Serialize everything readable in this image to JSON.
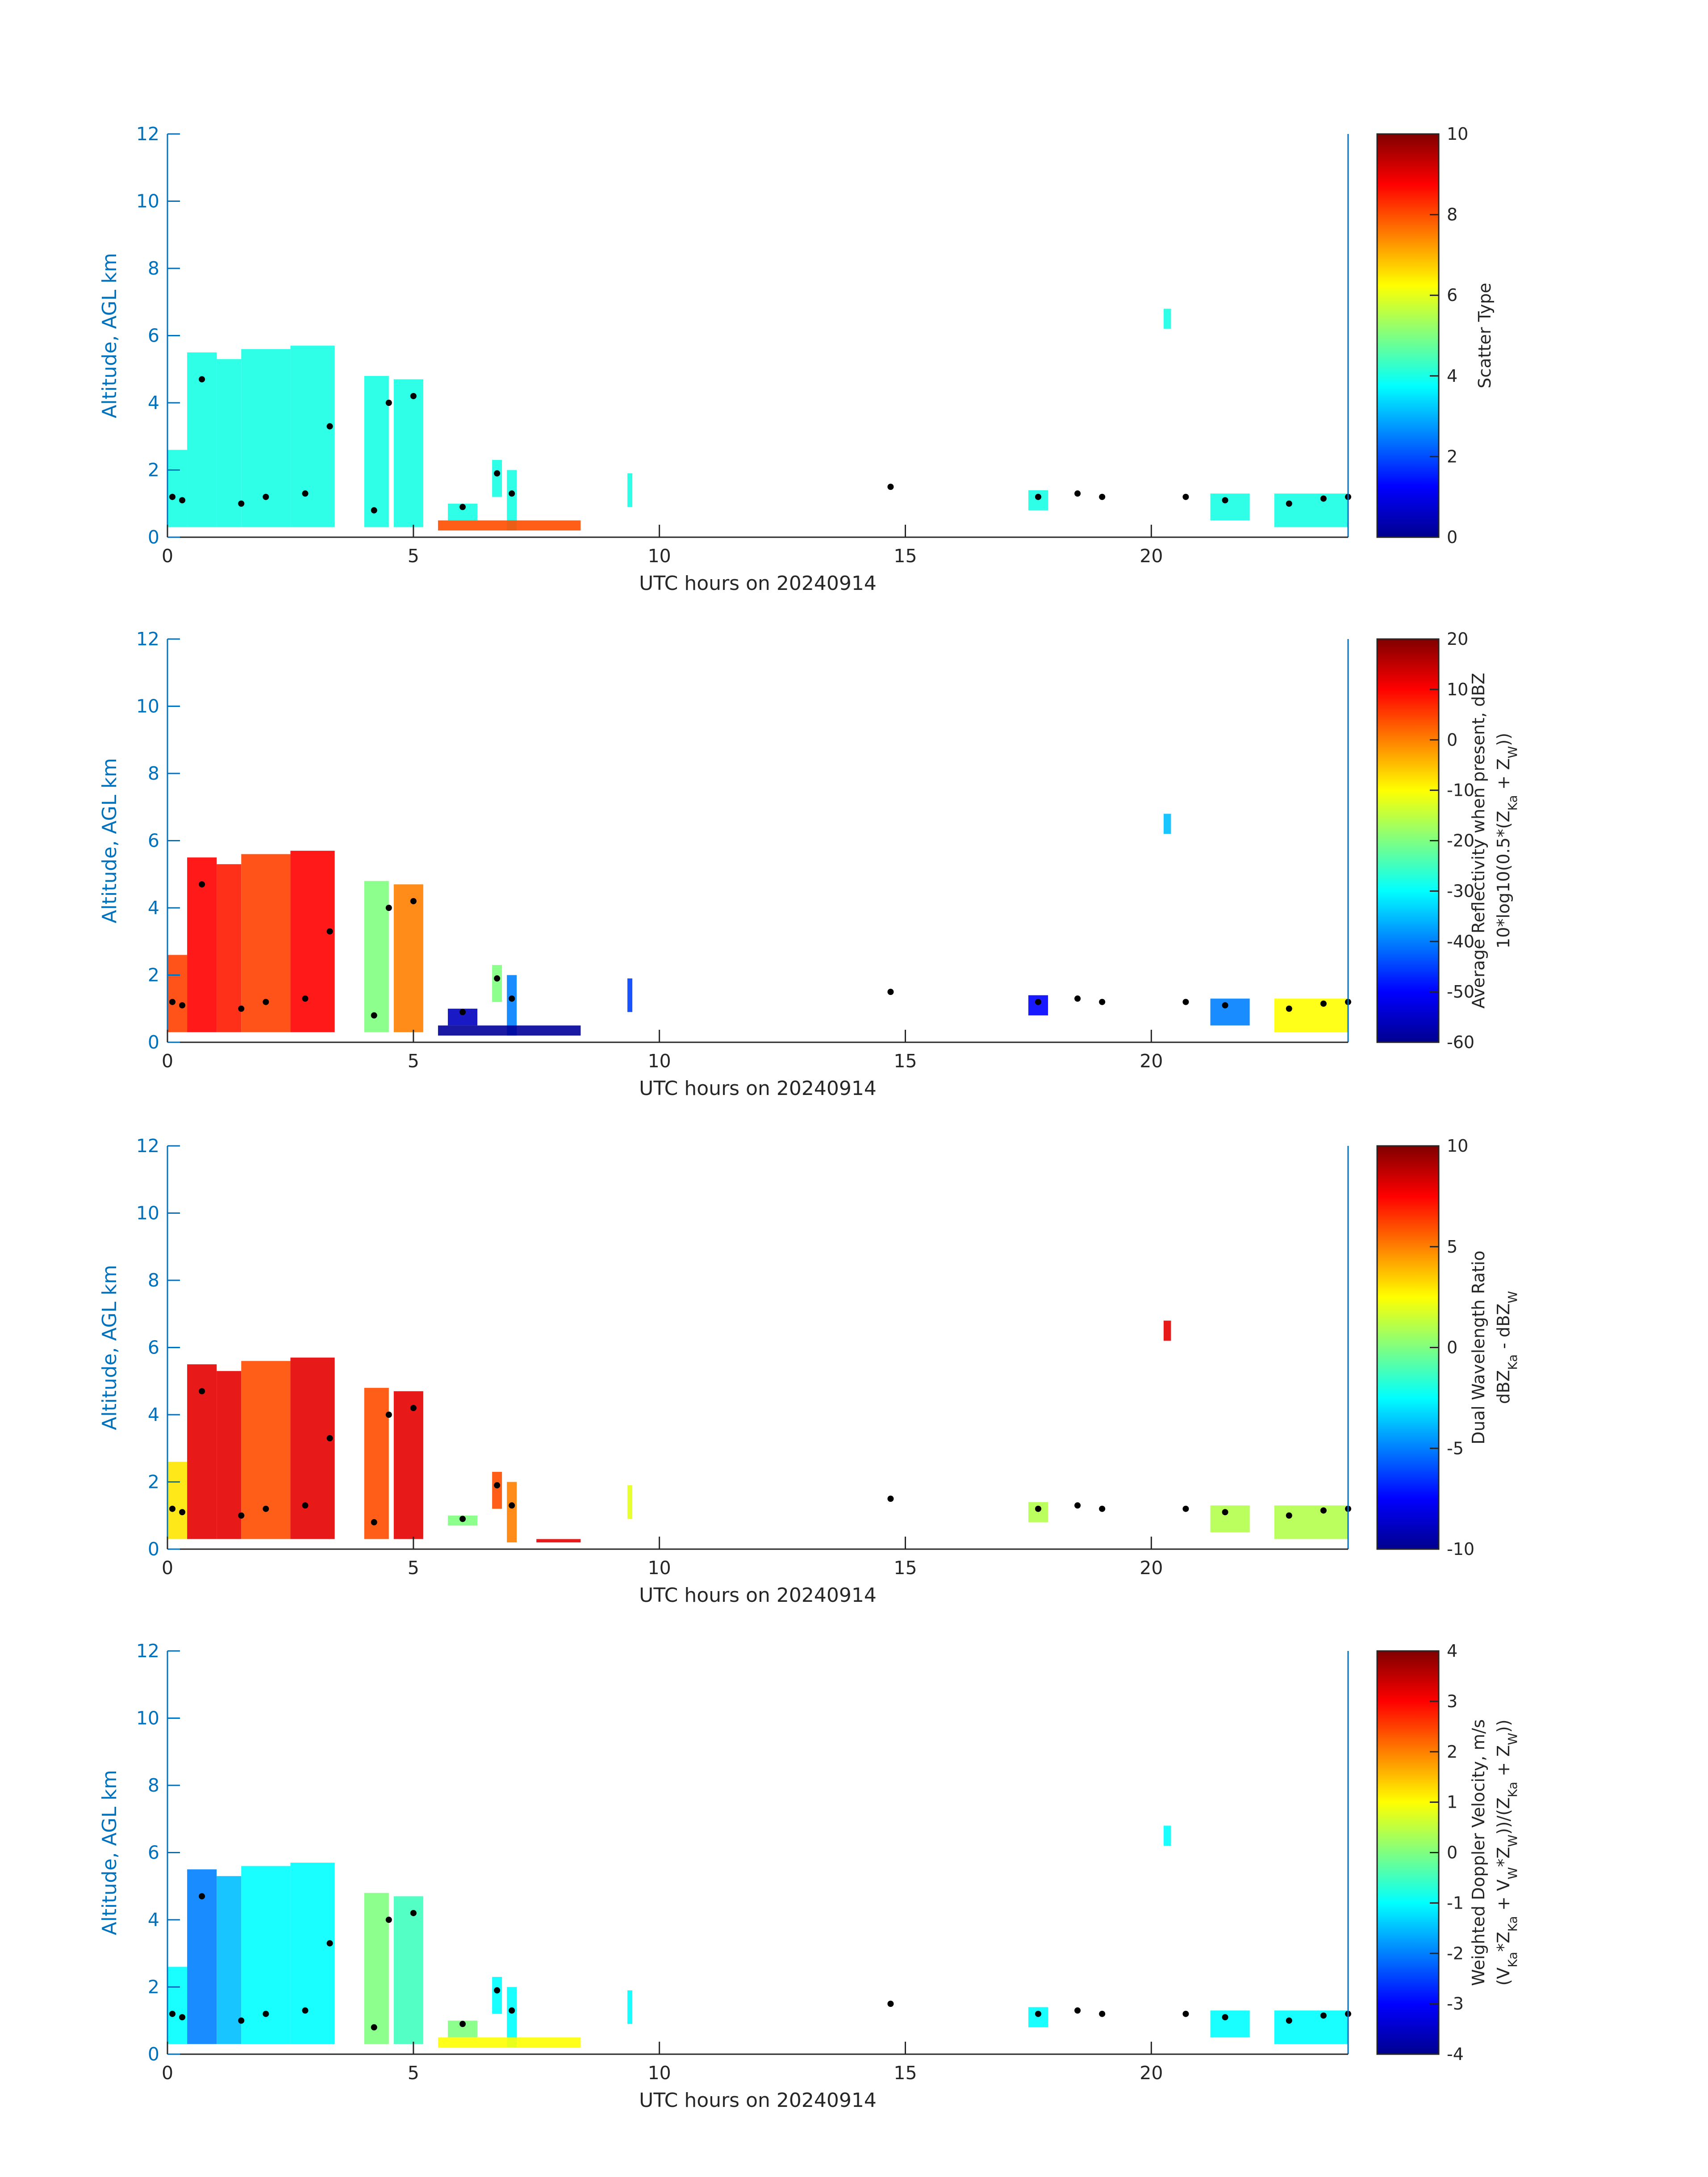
{
  "chart_data": [
    {
      "type": "heatmap",
      "xlabel": "UTC hours on 20240914",
      "ylabel": "Altitude, AGL km",
      "xlim": [
        0,
        24
      ],
      "xticks": [
        0,
        5,
        10,
        15,
        20
      ],
      "ylim": [
        0,
        12
      ],
      "yticks": [
        0,
        2,
        4,
        6,
        8,
        10,
        12
      ],
      "colormap": "jet",
      "clim": [
        0,
        10
      ],
      "cticks": [
        0,
        2,
        4,
        6,
        8,
        10
      ],
      "colorbar_label": [
        [
          {
            "text": "Scatter Type"
          }
        ]
      ],
      "regions": [
        [
          0,
          0.4,
          0.3,
          2.6
        ],
        [
          0.4,
          1.0,
          0.3,
          5.5
        ],
        [
          1.0,
          1.5,
          0.3,
          5.3
        ],
        [
          1.5,
          2.5,
          0.3,
          5.6
        ],
        [
          2.5,
          3.4,
          0.3,
          5.7
        ],
        [
          4.0,
          4.5,
          0.3,
          4.8
        ],
        [
          4.6,
          5.2,
          0.3,
          4.7
        ],
        [
          5.7,
          6.3,
          0.5,
          1.0
        ],
        [
          6.6,
          6.8,
          1.2,
          2.3
        ],
        [
          6.9,
          7.1,
          0.2,
          2.0
        ],
        [
          9.35,
          9.45,
          0.9,
          1.9
        ],
        [
          20.25,
          20.4,
          6.2,
          6.8
        ],
        [
          17.5,
          17.9,
          0.8,
          1.4
        ],
        [
          21.2,
          22.0,
          0.5,
          1.3
        ],
        [
          22.5,
          24,
          0.3,
          1.3
        ],
        [
          5.5,
          8.4,
          0.2,
          0.5
        ]
      ],
      "values": [
        4,
        4,
        4,
        4,
        4,
        4,
        4,
        4,
        4,
        4,
        4,
        4,
        4,
        4,
        4,
        8
      ],
      "cloud_base_x": [
        0.1,
        0.3,
        0.7,
        1.5,
        2.0,
        2.8,
        3.3,
        4.2,
        4.5,
        5.0,
        6.0,
        6.7,
        7.0,
        14.7,
        17.7,
        18.5,
        19.0,
        20.7,
        21.5,
        22.8,
        23.5,
        24
      ],
      "cloud_base_y": [
        1.2,
        1.1,
        4.7,
        1.0,
        1.2,
        1.3,
        3.3,
        0.8,
        4.0,
        4.2,
        0.9,
        1.9,
        1.3,
        1.5,
        1.2,
        1.3,
        1.2,
        1.2,
        1.1,
        1.0,
        1.15,
        1.2
      ]
    },
    {
      "type": "heatmap",
      "xlabel": "UTC hours on 20240914",
      "ylabel": "Altitude, AGL km",
      "xlim": [
        0,
        24
      ],
      "xticks": [
        0,
        5,
        10,
        15,
        20
      ],
      "ylim": [
        0,
        12
      ],
      "yticks": [
        0,
        2,
        4,
        6,
        8,
        10,
        12
      ],
      "colormap": "jet",
      "clim": [
        -60,
        20
      ],
      "cticks": [
        -60,
        -50,
        -40,
        -30,
        -20,
        -10,
        0,
        10,
        20
      ],
      "colorbar_label": [
        [
          {
            "text": "Average Reflectivity when present, dBZ"
          }
        ],
        [
          {
            "text": "10*log10(0.5*(Z"
          },
          {
            "text": "Ka",
            "sub": true
          },
          {
            "text": " + Z"
          },
          {
            "text": "W",
            "sub": true
          },
          {
            "text": "))"
          }
        ]
      ],
      "regions": [
        [
          0,
          0.4,
          0.3,
          2.6
        ],
        [
          0.4,
          1.0,
          0.3,
          5.5
        ],
        [
          1.0,
          1.5,
          0.3,
          5.3
        ],
        [
          1.5,
          2.5,
          0.3,
          5.6
        ],
        [
          2.5,
          3.4,
          0.3,
          5.7
        ],
        [
          4.0,
          4.5,
          0.3,
          4.8
        ],
        [
          4.6,
          5.2,
          0.3,
          4.7
        ],
        [
          5.7,
          6.3,
          0.5,
          1.0
        ],
        [
          6.6,
          6.8,
          1.2,
          2.3
        ],
        [
          6.9,
          7.1,
          0.2,
          2.0
        ],
        [
          9.35,
          9.45,
          0.9,
          1.9
        ],
        [
          20.25,
          20.4,
          6.2,
          6.8
        ],
        [
          17.5,
          17.9,
          0.8,
          1.4
        ],
        [
          21.2,
          22.0,
          0.5,
          1.3
        ],
        [
          22.5,
          24,
          0.3,
          1.3
        ],
        [
          5.5,
          8.4,
          0.2,
          0.5
        ]
      ],
      "values": [
        5,
        10,
        8,
        5,
        10,
        -20,
        0,
        -55,
        -20,
        -40,
        -45,
        -35,
        -50,
        -40,
        -10,
        -58
      ],
      "cloud_base_x": [
        0.1,
        0.3,
        0.7,
        1.5,
        2.0,
        2.8,
        3.3,
        4.2,
        4.5,
        5.0,
        6.0,
        6.7,
        7.0,
        14.7,
        17.7,
        18.5,
        19.0,
        20.7,
        21.5,
        22.8,
        23.5,
        24
      ],
      "cloud_base_y": [
        1.2,
        1.1,
        4.7,
        1.0,
        1.2,
        1.3,
        3.3,
        0.8,
        4.0,
        4.2,
        0.9,
        1.9,
        1.3,
        1.5,
        1.2,
        1.3,
        1.2,
        1.2,
        1.1,
        1.0,
        1.15,
        1.2
      ]
    },
    {
      "type": "heatmap",
      "xlabel": "UTC hours on 20240914",
      "ylabel": "Altitude, AGL km",
      "xlim": [
        0,
        24
      ],
      "xticks": [
        0,
        5,
        10,
        15,
        20
      ],
      "ylim": [
        0,
        12
      ],
      "yticks": [
        0,
        2,
        4,
        6,
        8,
        10,
        12
      ],
      "colormap": "jet",
      "clim": [
        -10,
        10
      ],
      "cticks": [
        -10,
        -5,
        0,
        5,
        10
      ],
      "colorbar_label": [
        [
          {
            "text": "Dual Wavelength Ratio"
          }
        ],
        [
          {
            "text": "dBZ"
          },
          {
            "text": "Ka",
            "sub": true
          },
          {
            "text": " - dBZ"
          },
          {
            "text": "W",
            "sub": true
          }
        ]
      ],
      "regions": [
        [
          0,
          0.4,
          0.3,
          2.6
        ],
        [
          0.4,
          1.0,
          0.3,
          5.5
        ],
        [
          1.0,
          1.5,
          0.3,
          5.3
        ],
        [
          1.5,
          2.5,
          0.3,
          5.6
        ],
        [
          2.5,
          3.4,
          0.3,
          5.7
        ],
        [
          4.0,
          4.5,
          0.3,
          4.8
        ],
        [
          4.6,
          5.2,
          0.3,
          4.7
        ],
        [
          5.7,
          6.3,
          0.7,
          1.0
        ],
        [
          6.6,
          6.8,
          1.2,
          2.3
        ],
        [
          6.9,
          7.1,
          0.2,
          2.0
        ],
        [
          9.35,
          9.45,
          0.9,
          1.9
        ],
        [
          20.25,
          20.4,
          6.2,
          6.8
        ],
        [
          17.5,
          17.9,
          0.8,
          1.4
        ],
        [
          21.2,
          22.0,
          0.5,
          1.3
        ],
        [
          22.5,
          24,
          0.3,
          1.3
        ],
        [
          7.5,
          8.4,
          0.2,
          0.3
        ]
      ],
      "values": [
        3,
        8,
        8,
        6,
        8,
        6,
        8,
        0,
        6,
        5,
        2,
        8,
        1,
        1,
        1,
        8
      ],
      "cloud_base_x": [
        0.1,
        0.3,
        0.7,
        1.5,
        2.0,
        2.8,
        3.3,
        4.2,
        4.5,
        5.0,
        6.0,
        6.7,
        7.0,
        14.7,
        17.7,
        18.5,
        19.0,
        20.7,
        21.5,
        22.8,
        23.5,
        24
      ],
      "cloud_base_y": [
        1.2,
        1.1,
        4.7,
        1.0,
        1.2,
        1.3,
        3.3,
        0.8,
        4.0,
        4.2,
        0.9,
        1.9,
        1.3,
        1.5,
        1.2,
        1.3,
        1.2,
        1.2,
        1.1,
        1.0,
        1.15,
        1.2
      ]
    },
    {
      "type": "heatmap",
      "xlabel": "UTC hours on 20240914",
      "ylabel": "Altitude, AGL km",
      "xlim": [
        0,
        24
      ],
      "xticks": [
        0,
        5,
        10,
        15,
        20
      ],
      "ylim": [
        0,
        12
      ],
      "yticks": [
        0,
        2,
        4,
        6,
        8,
        10,
        12
      ],
      "colormap": "jet",
      "clim": [
        -4,
        4
      ],
      "cticks": [
        -4,
        -3,
        -2,
        -1,
        0,
        1,
        2,
        3,
        4
      ],
      "colorbar_label": [
        [
          {
            "text": "Weighted Doppler Velocity, m/s"
          }
        ],
        [
          {
            "text": "(V"
          },
          {
            "text": "Ka",
            "sub": true
          },
          {
            "text": "*Z"
          },
          {
            "text": "Ka",
            "sub": true
          },
          {
            "text": " + V"
          },
          {
            "text": "W",
            "sub": true
          },
          {
            "text": "*Z"
          },
          {
            "text": "W",
            "sub": true
          },
          {
            "text": "))/(Z"
          },
          {
            "text": "Ka",
            "sub": true
          },
          {
            "text": " + Z"
          },
          {
            "text": "W",
            "sub": true
          },
          {
            "text": "))"
          }
        ]
      ],
      "regions": [
        [
          0,
          0.4,
          0.3,
          2.6
        ],
        [
          0.4,
          1.0,
          0.3,
          5.5
        ],
        [
          1.0,
          1.5,
          0.3,
          5.3
        ],
        [
          1.5,
          2.5,
          0.3,
          5.6
        ],
        [
          2.5,
          3.4,
          0.3,
          5.7
        ],
        [
          4.0,
          4.5,
          0.3,
          4.8
        ],
        [
          4.6,
          5.2,
          0.3,
          4.7
        ],
        [
          5.7,
          6.3,
          0.5,
          1.0
        ],
        [
          6.6,
          6.8,
          1.2,
          2.3
        ],
        [
          6.9,
          7.1,
          0.2,
          2.0
        ],
        [
          9.35,
          9.45,
          0.9,
          1.9
        ],
        [
          20.25,
          20.4,
          6.2,
          6.8
        ],
        [
          17.5,
          17.9,
          0.8,
          1.4
        ],
        [
          21.2,
          22.0,
          0.5,
          1.3
        ],
        [
          22.5,
          24,
          0.3,
          1.3
        ],
        [
          5.5,
          8.4,
          0.2,
          0.5
        ]
      ],
      "values": [
        -1,
        -2,
        -1.5,
        -1,
        -1,
        0,
        -0.5,
        0,
        -1,
        -1,
        -1,
        -1,
        -1,
        -1,
        -1,
        1
      ],
      "cloud_base_x": [
        0.1,
        0.3,
        0.7,
        1.5,
        2.0,
        2.8,
        3.3,
        4.2,
        4.5,
        5.0,
        6.0,
        6.7,
        7.0,
        14.7,
        17.7,
        18.5,
        19.0,
        20.7,
        21.5,
        22.8,
        23.5,
        24
      ],
      "cloud_base_y": [
        1.2,
        1.1,
        4.7,
        1.0,
        1.2,
        1.3,
        3.3,
        0.8,
        4.0,
        4.2,
        0.9,
        1.9,
        1.3,
        1.5,
        1.2,
        1.3,
        1.2,
        1.2,
        1.1,
        1.0,
        1.15,
        1.2
      ]
    }
  ]
}
